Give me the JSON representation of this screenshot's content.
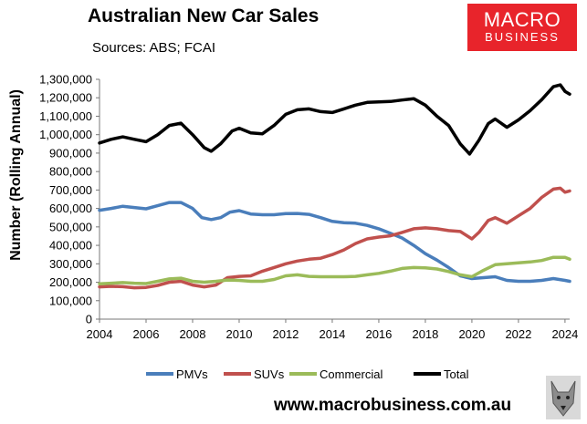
{
  "header": {
    "title": "Australian New Car Sales",
    "subtitle": "Sources: ABS; FCAI",
    "logo_line1": "MACRO",
    "logo_line2": "BUSINESS",
    "website": "www.macrobusiness.com.au"
  },
  "colors": {
    "brand_red": "#e8242b",
    "pmvs": "#4a7ebb",
    "suvs": "#c0504d",
    "commercial": "#9bbb59",
    "total": "#000000"
  },
  "chart_data": {
    "type": "line",
    "title": "Australian New Car Sales",
    "ylabel": "Number (Rolling Annual)",
    "xlabel": "",
    "xlim": [
      2004,
      2024.2
    ],
    "ylim": [
      0,
      1300000
    ],
    "x_ticks": [
      "2004",
      "2006",
      "2008",
      "2010",
      "2012",
      "2014",
      "2016",
      "2018",
      "2020",
      "2022",
      "2024"
    ],
    "y_ticks": [
      "0",
      "100,000",
      "200,000",
      "300,000",
      "400,000",
      "500,000",
      "600,000",
      "700,000",
      "800,000",
      "900,000",
      "1,000,000",
      "1,100,000",
      "1,200,000",
      "1,300,000"
    ],
    "legend_position": "bottom",
    "series": [
      {
        "name": "PMVs",
        "points": [
          [
            2004,
            590000
          ],
          [
            2004.5,
            600000
          ],
          [
            2005,
            612000
          ],
          [
            2005.5,
            605000
          ],
          [
            2006,
            598000
          ],
          [
            2006.5,
            615000
          ],
          [
            2007,
            632000
          ],
          [
            2007.5,
            632000
          ],
          [
            2008,
            600000
          ],
          [
            2008.4,
            550000
          ],
          [
            2008.8,
            540000
          ],
          [
            2009.2,
            550000
          ],
          [
            2009.6,
            580000
          ],
          [
            2010,
            588000
          ],
          [
            2010.5,
            570000
          ],
          [
            2011,
            566000
          ],
          [
            2011.5,
            566000
          ],
          [
            2012,
            572000
          ],
          [
            2012.5,
            573000
          ],
          [
            2013,
            568000
          ],
          [
            2013.5,
            550000
          ],
          [
            2014,
            530000
          ],
          [
            2014.5,
            523000
          ],
          [
            2015,
            520000
          ],
          [
            2015.5,
            508000
          ],
          [
            2016,
            490000
          ],
          [
            2016.5,
            465000
          ],
          [
            2017,
            440000
          ],
          [
            2017.5,
            400000
          ],
          [
            2018,
            355000
          ],
          [
            2018.5,
            320000
          ],
          [
            2019,
            280000
          ],
          [
            2019.5,
            235000
          ],
          [
            2020,
            220000
          ],
          [
            2020.5,
            225000
          ],
          [
            2021,
            230000
          ],
          [
            2021.5,
            210000
          ],
          [
            2022,
            205000
          ],
          [
            2022.5,
            205000
          ],
          [
            2023,
            210000
          ],
          [
            2023.5,
            220000
          ],
          [
            2024,
            210000
          ],
          [
            2024.2,
            205000
          ]
        ]
      },
      {
        "name": "SUVs",
        "points": [
          [
            2004,
            175000
          ],
          [
            2004.5,
            178000
          ],
          [
            2005,
            176000
          ],
          [
            2005.5,
            170000
          ],
          [
            2006,
            172000
          ],
          [
            2006.5,
            183000
          ],
          [
            2007,
            200000
          ],
          [
            2007.5,
            205000
          ],
          [
            2008,
            185000
          ],
          [
            2008.5,
            175000
          ],
          [
            2009,
            185000
          ],
          [
            2009.5,
            225000
          ],
          [
            2010,
            232000
          ],
          [
            2010.5,
            235000
          ],
          [
            2011,
            260000
          ],
          [
            2011.5,
            280000
          ],
          [
            2012,
            300000
          ],
          [
            2012.5,
            315000
          ],
          [
            2013,
            325000
          ],
          [
            2013.5,
            330000
          ],
          [
            2014,
            350000
          ],
          [
            2014.5,
            375000
          ],
          [
            2015,
            410000
          ],
          [
            2015.5,
            435000
          ],
          [
            2016,
            445000
          ],
          [
            2016.5,
            452000
          ],
          [
            2017,
            470000
          ],
          [
            2017.5,
            490000
          ],
          [
            2018,
            495000
          ],
          [
            2018.5,
            490000
          ],
          [
            2019,
            480000
          ],
          [
            2019.5,
            475000
          ],
          [
            2020,
            435000
          ],
          [
            2020.3,
            470000
          ],
          [
            2020.7,
            535000
          ],
          [
            2021,
            550000
          ],
          [
            2021.5,
            520000
          ],
          [
            2022,
            560000
          ],
          [
            2022.5,
            600000
          ],
          [
            2023,
            660000
          ],
          [
            2023.5,
            705000
          ],
          [
            2023.8,
            710000
          ],
          [
            2024,
            688000
          ],
          [
            2024.2,
            695000
          ]
        ]
      },
      {
        "name": "Commercial",
        "points": [
          [
            2004,
            192000
          ],
          [
            2004.5,
            195000
          ],
          [
            2005,
            198000
          ],
          [
            2005.5,
            195000
          ],
          [
            2006,
            193000
          ],
          [
            2006.5,
            205000
          ],
          [
            2007,
            218000
          ],
          [
            2007.5,
            222000
          ],
          [
            2008,
            205000
          ],
          [
            2008.5,
            200000
          ],
          [
            2009,
            205000
          ],
          [
            2009.5,
            212000
          ],
          [
            2010,
            210000
          ],
          [
            2010.5,
            205000
          ],
          [
            2011,
            205000
          ],
          [
            2011.5,
            215000
          ],
          [
            2012,
            235000
          ],
          [
            2012.5,
            240000
          ],
          [
            2013,
            232000
          ],
          [
            2013.5,
            230000
          ],
          [
            2014,
            230000
          ],
          [
            2014.5,
            230000
          ],
          [
            2015,
            232000
          ],
          [
            2015.5,
            240000
          ],
          [
            2016,
            248000
          ],
          [
            2016.5,
            260000
          ],
          [
            2017,
            275000
          ],
          [
            2017.5,
            280000
          ],
          [
            2018,
            278000
          ],
          [
            2018.5,
            272000
          ],
          [
            2019,
            258000
          ],
          [
            2019.5,
            240000
          ],
          [
            2020,
            230000
          ],
          [
            2020.5,
            265000
          ],
          [
            2021,
            295000
          ],
          [
            2021.5,
            300000
          ],
          [
            2022,
            305000
          ],
          [
            2022.5,
            310000
          ],
          [
            2023,
            318000
          ],
          [
            2023.5,
            335000
          ],
          [
            2024,
            335000
          ],
          [
            2024.2,
            325000
          ]
        ]
      },
      {
        "name": "Total",
        "points": [
          [
            2004,
            955000
          ],
          [
            2004.5,
            975000
          ],
          [
            2005,
            988000
          ],
          [
            2005.5,
            975000
          ],
          [
            2006,
            962000
          ],
          [
            2006.5,
            1000000
          ],
          [
            2007,
            1050000
          ],
          [
            2007.5,
            1062000
          ],
          [
            2008,
            1000000
          ],
          [
            2008.5,
            930000
          ],
          [
            2008.8,
            910000
          ],
          [
            2009.2,
            950000
          ],
          [
            2009.7,
            1020000
          ],
          [
            2010,
            1035000
          ],
          [
            2010.5,
            1010000
          ],
          [
            2011,
            1005000
          ],
          [
            2011.5,
            1050000
          ],
          [
            2012,
            1110000
          ],
          [
            2012.5,
            1135000
          ],
          [
            2013,
            1140000
          ],
          [
            2013.5,
            1125000
          ],
          [
            2014,
            1120000
          ],
          [
            2014.5,
            1140000
          ],
          [
            2015,
            1160000
          ],
          [
            2015.5,
            1175000
          ],
          [
            2016,
            1178000
          ],
          [
            2016.5,
            1180000
          ],
          [
            2017,
            1188000
          ],
          [
            2017.5,
            1195000
          ],
          [
            2018,
            1160000
          ],
          [
            2018.5,
            1100000
          ],
          [
            2019,
            1050000
          ],
          [
            2019.5,
            950000
          ],
          [
            2019.9,
            895000
          ],
          [
            2020.3,
            970000
          ],
          [
            2020.7,
            1060000
          ],
          [
            2021,
            1085000
          ],
          [
            2021.5,
            1040000
          ],
          [
            2022,
            1080000
          ],
          [
            2022.5,
            1130000
          ],
          [
            2023,
            1190000
          ],
          [
            2023.5,
            1260000
          ],
          [
            2023.8,
            1270000
          ],
          [
            2024,
            1235000
          ],
          [
            2024.2,
            1220000
          ]
        ]
      }
    ]
  }
}
